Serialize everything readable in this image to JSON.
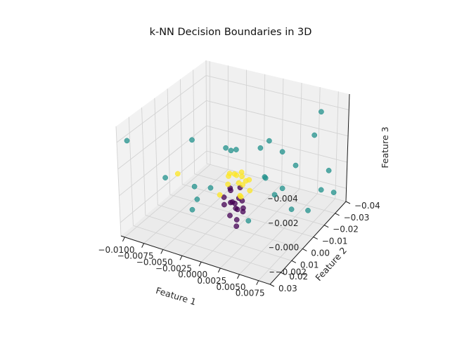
{
  "chart_data": {
    "type": "scatter",
    "projection": "3d",
    "title": "k-NN Decision Boundaries in 3D",
    "xlabel": "Feature 1",
    "ylabel": "Feature 2",
    "zlabel": "Feature 3",
    "xlim": [
      -0.0105,
      0.009
    ],
    "ylim": [
      -0.04,
      0.03
    ],
    "zlim": [
      -0.003,
      0.0052
    ],
    "x_ticks": [
      "−0.0100",
      "−0.0075",
      "−0.0050",
      "−0.0025",
      "0.0000",
      "0.0025",
      "0.0050",
      "0.0075"
    ],
    "y_ticks": [
      "−0.04",
      "−0.03",
      "−0.02",
      "−0.01",
      "0.00",
      "0.01",
      "0.02",
      "0.03"
    ],
    "z_ticks": [
      "−0.002",
      "0.000",
      "0.002",
      "0.004"
    ],
    "grid": true,
    "colors": {
      "class_0": "#440154",
      "class_1": "#21918c",
      "class_2": "#fde725",
      "pane": "#f2f2f2",
      "grid": "#d3d3d3"
    },
    "series": [
      {
        "class": 0,
        "color": "#440154",
        "points": [
          [
            -0.0008,
            -0.001,
            -0.0012
          ],
          [
            -0.0004,
            0.0,
            -0.001
          ],
          [
            0.0002,
            0.001,
            -0.0013
          ],
          [
            0.0006,
            -0.002,
            -0.0009
          ],
          [
            -0.0012,
            0.002,
            -0.0006
          ],
          [
            0.001,
            0.0,
            -0.0015
          ],
          [
            -0.0002,
            -0.003,
            -0.0018
          ],
          [
            0.0004,
            0.003,
            -0.0007
          ],
          [
            -0.0006,
            0.001,
            -0.002
          ],
          [
            0.0,
            -0.001,
            -0.0024
          ],
          [
            0.0008,
            0.002,
            -0.0003
          ],
          [
            -0.001,
            -0.002,
            -0.0002
          ],
          [
            0.0001,
            0.0,
            -0.0028
          ],
          [
            -0.0003,
            0.002,
            0.0001
          ],
          [
            0.0005,
            -0.001,
            0.0002
          ],
          [
            0.0012,
            0.001,
            -0.0011
          ],
          [
            -0.0015,
            0.0,
            -0.0014
          ]
        ]
      },
      {
        "class": 1,
        "color": "#21918c",
        "points": [
          [
            -0.0095,
            0.028,
            0.0042
          ],
          [
            0.0068,
            -0.03,
            0.0045
          ],
          [
            -0.004,
            0.01,
            0.004
          ],
          [
            0.003,
            -0.01,
            0.0035
          ],
          [
            -0.006,
            0.02,
            0.0015
          ],
          [
            0.005,
            -0.02,
            0.001
          ],
          [
            0.008,
            -0.035,
            -0.002
          ],
          [
            0.007,
            -0.03,
            -0.0015
          ],
          [
            -0.002,
            -0.005,
            0.0025
          ],
          [
            0.0015,
            -0.012,
            0.0025
          ],
          [
            0.0035,
            -0.018,
            0.002
          ],
          [
            0.0025,
            -0.01,
            0.0005
          ],
          [
            -0.003,
            0.015,
            0.001
          ],
          [
            -0.005,
            0.005,
            -0.002
          ],
          [
            -0.0035,
            0.01,
            -0.0005
          ],
          [
            0.0025,
            0.005,
            -0.0015
          ],
          [
            0.006,
            -0.025,
            -0.0028
          ],
          [
            0.0045,
            -0.02,
            -0.0025
          ],
          [
            0.0055,
            0.01,
            0.003
          ],
          [
            0.009,
            -0.01,
            0.005
          ],
          [
            0.0045,
            -0.005,
            0.0
          ],
          [
            -0.0005,
            0.0,
            0.003
          ],
          [
            0.001,
            0.005,
            0.0038
          ],
          [
            0.0065,
            -0.04,
            -0.001
          ],
          [
            -0.002,
            0.008,
            0.0005
          ],
          [
            0.004,
            -0.015,
            -0.0005
          ]
        ]
      },
      {
        "class": 2,
        "color": "#fde725",
        "points": [
          [
            0.0002,
            0.0,
            0.0012
          ],
          [
            0.0006,
            -0.002,
            0.001
          ],
          [
            -0.0004,
            0.002,
            0.0014
          ],
          [
            0.001,
            0.0,
            0.0006
          ],
          [
            -0.0008,
            0.001,
            0.0004
          ],
          [
            0.0014,
            -0.003,
            0.0008
          ],
          [
            0.0004,
            0.003,
            0.0016
          ],
          [
            0.0018,
            -0.001,
            0.0002
          ],
          [
            -0.0012,
            -0.002,
            0.0007
          ],
          [
            0.0008,
            0.001,
            -0.0002
          ],
          [
            -0.006,
            0.01,
            0.001
          ],
          [
            0.0012,
            0.002,
            0.0018
          ],
          [
            0.0,
            -0.003,
            0.0003
          ],
          [
            0.0016,
            0.001,
            0.0011
          ],
          [
            -0.0016,
            0.003,
            -0.0004
          ],
          [
            0.0006,
            -0.001,
            -0.0005
          ]
        ]
      }
    ]
  }
}
